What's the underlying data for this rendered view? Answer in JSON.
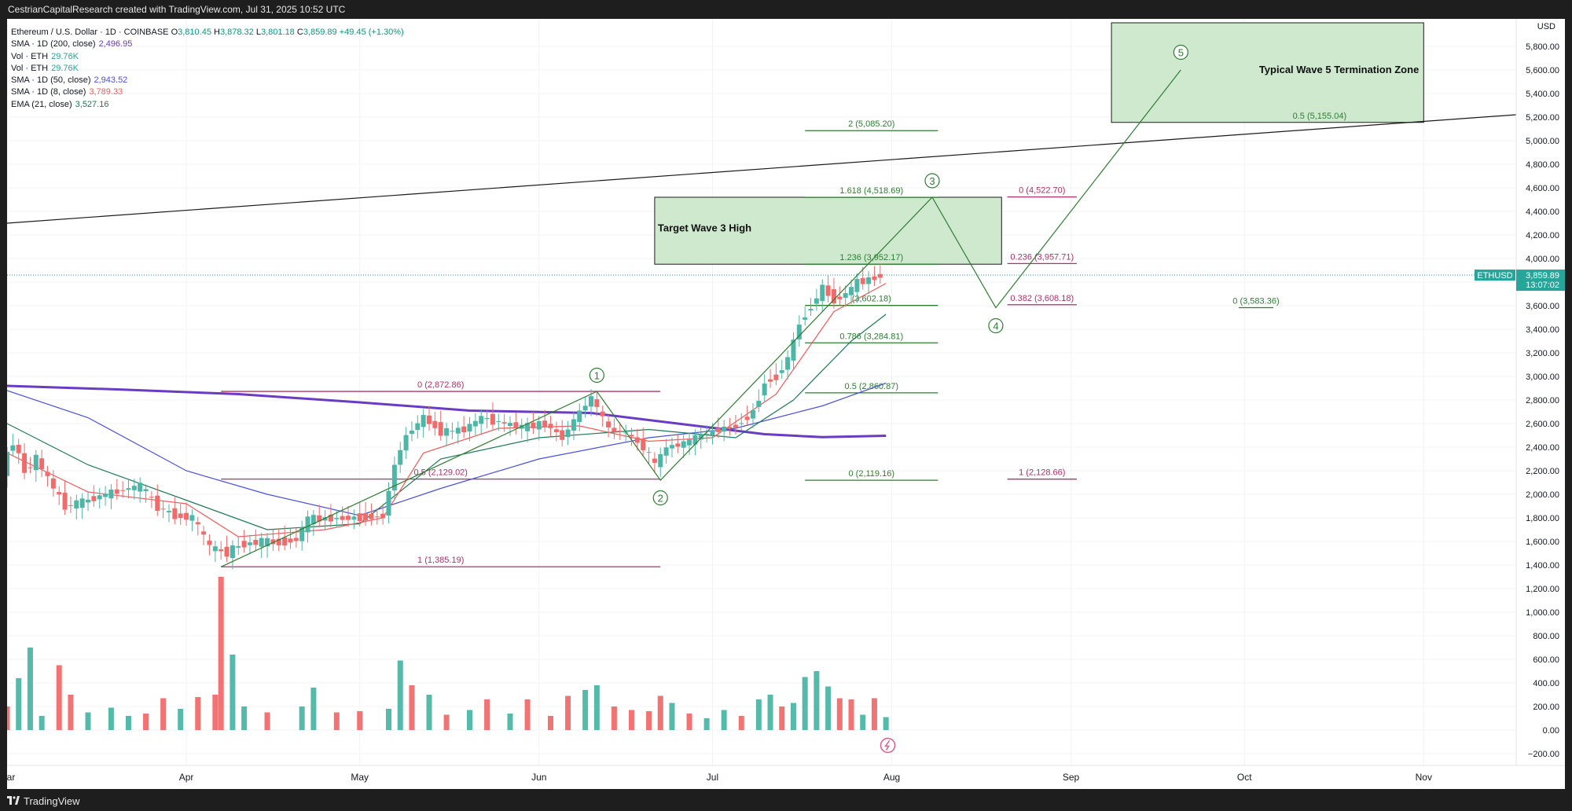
{
  "header": {
    "attribution": "CestrianCapitalResearch created with TradingView.com, Jul 31, 2025 10:52 UTC"
  },
  "footer": {
    "brand": "TradingView"
  },
  "colors": {
    "up": "#4db6a6",
    "down": "#f06b6b",
    "fib_green": "#2e7d32",
    "fib_magenta": "#b0306a",
    "sma200": "#6a3bc4",
    "sma50": "#4a50e0",
    "sma8": "#f25c5c",
    "ema21": "#1d7a55",
    "box_fill": "#cfe9cf"
  },
  "legend": {
    "title": "Ethereum / U.S. Dollar · 1D · COINBASE",
    "o_label": "O",
    "o": "3,810.45",
    "h_label": "H",
    "h": "3,878.32",
    "l_label": "L",
    "l": "3,801.18",
    "c_label": "C",
    "c": "3,859.89",
    "change": "+49.45 (+1.30%)",
    "rows": [
      {
        "label": "SMA · 1D (200, close)",
        "value": "2,496.95",
        "color": "#6a3bc4"
      },
      {
        "label": "Vol · ETH",
        "value": "29.76K",
        "color": "#26a69a"
      },
      {
        "label": "Vol · ETH",
        "value": "29.76K",
        "color": "#26a69a"
      },
      {
        "label": "SMA · 1D (50, close)",
        "value": "2,943.52",
        "color": "#4a50e0"
      },
      {
        "label": "SMA · 1D (8, close)",
        "value": "3,789.33",
        "color": "#f25c5c"
      },
      {
        "label": "EMA (21, close)",
        "value": "3,527.16",
        "color": "#1d7a55"
      }
    ]
  },
  "chart_data": {
    "type": "candlestick",
    "symbol": "ETHUSD",
    "last_price": "3,859.89",
    "countdown": "13:07:02",
    "y_ticks": [
      5800,
      5600,
      5400,
      5200,
      5000,
      4800,
      4600,
      4400,
      4200,
      4000,
      3800,
      3600,
      3400,
      3200,
      3000,
      2800,
      2600,
      2400,
      2200,
      2000,
      1800,
      1600,
      1400,
      1200,
      1000,
      800,
      600,
      400,
      200,
      0,
      -200
    ],
    "x_ticks": [
      {
        "label": "Mar",
        "date": "2025-03-01"
      },
      {
        "label": "Apr",
        "date": "2025-04-01"
      },
      {
        "label": "May",
        "date": "2025-05-01"
      },
      {
        "label": "Jun",
        "date": "2025-06-01"
      },
      {
        "label": "Jul",
        "date": "2025-07-01"
      },
      {
        "label": "Aug",
        "date": "2025-08-01"
      },
      {
        "label": "Sep",
        "date": "2025-09-01"
      },
      {
        "label": "Oct",
        "date": "2025-10-01"
      },
      {
        "label": "Nov",
        "date": "2025-11-01"
      }
    ],
    "x_range": [
      "2025-03-01",
      "2025-11-17"
    ],
    "y_range": [
      -270,
      6000
    ],
    "price_path": [
      [
        "2025-03-01",
        2200
      ],
      [
        "2025-03-03",
        2450
      ],
      [
        "2025-03-05",
        2200
      ],
      [
        "2025-03-07",
        2300
      ],
      [
        "2025-03-10",
        2050
      ],
      [
        "2025-03-12",
        1900
      ],
      [
        "2025-03-15",
        1935
      ],
      [
        "2025-03-19",
        2000
      ],
      [
        "2025-03-22",
        2040
      ],
      [
        "2025-03-25",
        2070
      ],
      [
        "2025-03-28",
        1890
      ],
      [
        "2025-03-31",
        1820
      ],
      [
        "2025-04-03",
        1800
      ],
      [
        "2025-04-06",
        1550
      ],
      [
        "2025-04-09",
        1500
      ],
      [
        "2025-04-11",
        1570
      ],
      [
        "2025-04-15",
        1600
      ],
      [
        "2025-04-18",
        1590
      ],
      [
        "2025-04-21",
        1620
      ],
      [
        "2025-04-23",
        1790
      ],
      [
        "2025-04-27",
        1795
      ],
      [
        "2025-05-01",
        1800
      ],
      [
        "2025-05-04",
        1810
      ],
      [
        "2025-05-06",
        1815
      ],
      [
        "2025-05-08",
        2250
      ],
      [
        "2025-05-10",
        2500
      ],
      [
        "2025-05-13",
        2650
      ],
      [
        "2025-05-16",
        2530
      ],
      [
        "2025-05-20",
        2550
      ],
      [
        "2025-05-23",
        2650
      ],
      [
        "2025-05-27",
        2600
      ],
      [
        "2025-05-30",
        2570
      ],
      [
        "2025-06-03",
        2600
      ],
      [
        "2025-06-06",
        2480
      ],
      [
        "2025-06-09",
        2700
      ],
      [
        "2025-06-11",
        2820
      ],
      [
        "2025-06-14",
        2550
      ],
      [
        "2025-06-17",
        2520
      ],
      [
        "2025-06-20",
        2400
      ],
      [
        "2025-06-22",
        2250
      ],
      [
        "2025-06-24",
        2400
      ],
      [
        "2025-06-27",
        2430
      ],
      [
        "2025-06-30",
        2500
      ],
      [
        "2025-07-03",
        2550
      ],
      [
        "2025-07-06",
        2580
      ],
      [
        "2025-07-09",
        2700
      ],
      [
        "2025-07-11",
        2950
      ],
      [
        "2025-07-13",
        3000
      ],
      [
        "2025-07-15",
        3150
      ],
      [
        "2025-07-17",
        3450
      ],
      [
        "2025-07-19",
        3600
      ],
      [
        "2025-07-21",
        3750
      ],
      [
        "2025-07-23",
        3650
      ],
      [
        "2025-07-25",
        3700
      ],
      [
        "2025-07-27",
        3800
      ],
      [
        "2025-07-29",
        3820
      ],
      [
        "2025-07-31",
        3859.89
      ]
    ],
    "sma200_path": [
      [
        "2025-03-01",
        2920
      ],
      [
        "2025-03-20",
        2890
      ],
      [
        "2025-04-10",
        2850
      ],
      [
        "2025-05-01",
        2780
      ],
      [
        "2025-05-20",
        2710
      ],
      [
        "2025-06-10",
        2690
      ],
      [
        "2025-06-25",
        2600
      ],
      [
        "2025-07-10",
        2510
      ],
      [
        "2025-07-20",
        2485
      ],
      [
        "2025-07-31",
        2496.95
      ]
    ],
    "sma50_path": [
      [
        "2025-03-01",
        2880
      ],
      [
        "2025-03-15",
        2650
      ],
      [
        "2025-04-01",
        2200
      ],
      [
        "2025-04-15",
        2000
      ],
      [
        "2025-05-01",
        1820
      ],
      [
        "2025-05-15",
        2050
      ],
      [
        "2025-06-01",
        2300
      ],
      [
        "2025-06-20",
        2480
      ],
      [
        "2025-07-05",
        2560
      ],
      [
        "2025-07-20",
        2750
      ],
      [
        "2025-07-31",
        2943.52
      ]
    ],
    "ema21_path": [
      [
        "2025-03-01",
        2600
      ],
      [
        "2025-03-15",
        2250
      ],
      [
        "2025-04-01",
        1950
      ],
      [
        "2025-04-15",
        1700
      ],
      [
        "2025-05-01",
        1750
      ],
      [
        "2025-05-15",
        2300
      ],
      [
        "2025-06-01",
        2480
      ],
      [
        "2025-06-20",
        2550
      ],
      [
        "2025-07-05",
        2480
      ],
      [
        "2025-07-15",
        2800
      ],
      [
        "2025-07-25",
        3300
      ],
      [
        "2025-07-31",
        3527.16
      ]
    ],
    "sma8_path": [
      [
        "2025-03-01",
        2350
      ],
      [
        "2025-03-15",
        2020
      ],
      [
        "2025-04-01",
        1920
      ],
      [
        "2025-04-10",
        1640
      ],
      [
        "2025-04-25",
        1700
      ],
      [
        "2025-05-05",
        1800
      ],
      [
        "2025-05-12",
        2350
      ],
      [
        "2025-05-25",
        2560
      ],
      [
        "2025-06-08",
        2580
      ],
      [
        "2025-06-20",
        2450
      ],
      [
        "2025-07-01",
        2480
      ],
      [
        "2025-07-12",
        2850
      ],
      [
        "2025-07-22",
        3550
      ],
      [
        "2025-07-31",
        3789.33
      ]
    ],
    "volume_bars": [
      {
        "date": "2025-03-01",
        "v": 200,
        "up": false
      },
      {
        "date": "2025-03-03",
        "v": 440,
        "up": true
      },
      {
        "date": "2025-03-05",
        "v": 700,
        "up": true
      },
      {
        "date": "2025-03-07",
        "v": 120,
        "up": true
      },
      {
        "date": "2025-03-10",
        "v": 550,
        "up": false
      },
      {
        "date": "2025-03-12",
        "v": 300,
        "up": false
      },
      {
        "date": "2025-03-15",
        "v": 150,
        "up": true
      },
      {
        "date": "2025-03-19",
        "v": 190,
        "up": true
      },
      {
        "date": "2025-03-22",
        "v": 120,
        "up": true
      },
      {
        "date": "2025-03-25",
        "v": 140,
        "up": false
      },
      {
        "date": "2025-03-28",
        "v": 270,
        "up": false
      },
      {
        "date": "2025-03-31",
        "v": 180,
        "up": true
      },
      {
        "date": "2025-04-03",
        "v": 280,
        "up": false
      },
      {
        "date": "2025-04-06",
        "v": 300,
        "up": false
      },
      {
        "date": "2025-04-07",
        "v": 1300,
        "up": false
      },
      {
        "date": "2025-04-09",
        "v": 640,
        "up": true
      },
      {
        "date": "2025-04-11",
        "v": 200,
        "up": true
      },
      {
        "date": "2025-04-15",
        "v": 150,
        "up": false
      },
      {
        "date": "2025-04-21",
        "v": 200,
        "up": true
      },
      {
        "date": "2025-04-23",
        "v": 360,
        "up": true
      },
      {
        "date": "2025-04-27",
        "v": 150,
        "up": false
      },
      {
        "date": "2025-05-01",
        "v": 160,
        "up": false
      },
      {
        "date": "2025-05-06",
        "v": 180,
        "up": true
      },
      {
        "date": "2025-05-08",
        "v": 590,
        "up": true
      },
      {
        "date": "2025-05-10",
        "v": 380,
        "up": false
      },
      {
        "date": "2025-05-13",
        "v": 300,
        "up": true
      },
      {
        "date": "2025-05-16",
        "v": 130,
        "up": false
      },
      {
        "date": "2025-05-20",
        "v": 170,
        "up": true
      },
      {
        "date": "2025-05-23",
        "v": 260,
        "up": false
      },
      {
        "date": "2025-05-27",
        "v": 140,
        "up": true
      },
      {
        "date": "2025-05-30",
        "v": 260,
        "up": false
      },
      {
        "date": "2025-06-03",
        "v": 120,
        "up": false
      },
      {
        "date": "2025-06-06",
        "v": 290,
        "up": false
      },
      {
        "date": "2025-06-09",
        "v": 340,
        "up": true
      },
      {
        "date": "2025-06-11",
        "v": 380,
        "up": true
      },
      {
        "date": "2025-06-14",
        "v": 200,
        "up": false
      },
      {
        "date": "2025-06-17",
        "v": 170,
        "up": false
      },
      {
        "date": "2025-06-20",
        "v": 160,
        "up": false
      },
      {
        "date": "2025-06-22",
        "v": 290,
        "up": false
      },
      {
        "date": "2025-06-24",
        "v": 230,
        "up": true
      },
      {
        "date": "2025-06-27",
        "v": 140,
        "up": false
      },
      {
        "date": "2025-06-30",
        "v": 100,
        "up": true
      },
      {
        "date": "2025-07-03",
        "v": 170,
        "up": true
      },
      {
        "date": "2025-07-06",
        "v": 120,
        "up": false
      },
      {
        "date": "2025-07-09",
        "v": 260,
        "up": true
      },
      {
        "date": "2025-07-11",
        "v": 300,
        "up": true
      },
      {
        "date": "2025-07-13",
        "v": 200,
        "up": false
      },
      {
        "date": "2025-07-15",
        "v": 230,
        "up": true
      },
      {
        "date": "2025-07-17",
        "v": 450,
        "up": true
      },
      {
        "date": "2025-07-19",
        "v": 500,
        "up": true
      },
      {
        "date": "2025-07-21",
        "v": 370,
        "up": true
      },
      {
        "date": "2025-07-23",
        "v": 270,
        "up": false
      },
      {
        "date": "2025-07-25",
        "v": 260,
        "up": false
      },
      {
        "date": "2025-07-27",
        "v": 130,
        "up": true
      },
      {
        "date": "2025-07-29",
        "v": 270,
        "up": false
      },
      {
        "date": "2025-07-31",
        "v": 110,
        "up": true
      }
    ],
    "fib_levels": [
      {
        "label": "0 (2,872.86)",
        "price": 2872.86,
        "from": "2025-04-07",
        "to": "2025-06-22",
        "color": "#b0306a"
      },
      {
        "label": "0.5 (2,129.02)",
        "price": 2129.02,
        "from": "2025-04-07",
        "to": "2025-06-22",
        "color": "#b0306a"
      },
      {
        "label": "1 (1,385.19)",
        "price": 1385.19,
        "from": "2025-04-07",
        "to": "2025-06-22",
        "color": "#b0306a"
      },
      {
        "label": "2 (5,085.20)",
        "price": 5085.2,
        "from": "2025-07-17",
        "to": "2025-08-09",
        "color": "#2e7d32"
      },
      {
        "label": "1.618 (4,518.69)",
        "price": 4518.69,
        "from": "2025-07-17",
        "to": "2025-08-09",
        "color": "#2e7d32"
      },
      {
        "label": "1.236 (3,952.17)",
        "price": 3952.17,
        "from": "2025-07-17",
        "to": "2025-08-09",
        "color": "#2e7d32"
      },
      {
        "label": "(3,602.18)",
        "price": 3602.18,
        "from": "2025-07-17",
        "to": "2025-08-09",
        "color": "#2e7d32"
      },
      {
        "label": "0.786 (3,284.81)",
        "price": 3284.81,
        "from": "2025-07-17",
        "to": "2025-08-09",
        "color": "#2e7d32"
      },
      {
        "label": "0.5 (2,860.87)",
        "price": 2860.87,
        "from": "2025-07-17",
        "to": "2025-08-09",
        "color": "#2e7d32"
      },
      {
        "label": "0 (2,119.16)",
        "price": 2119.16,
        "from": "2025-07-17",
        "to": "2025-08-09",
        "color": "#2e7d32"
      },
      {
        "label": "0 (4,522.70)",
        "price": 4522.7,
        "from": "2025-08-21",
        "to": "2025-09-02",
        "color": "#b0306a"
      },
      {
        "label": "0.236 (3,957.71)",
        "price": 3957.71,
        "from": "2025-08-21",
        "to": "2025-09-02",
        "color": "#b0306a"
      },
      {
        "label": "0.382 (3,608.18)",
        "price": 3608.18,
        "from": "2025-08-21",
        "to": "2025-09-02",
        "color": "#b0306a"
      },
      {
        "label": "1 (2,128.66)",
        "price": 2128.66,
        "from": "2025-08-21",
        "to": "2025-09-02",
        "color": "#b0306a"
      },
      {
        "label": "0 (3,583.36)",
        "price": 3583.36,
        "from": "2025-09-30",
        "to": "2025-10-06",
        "color": "#2e7d32"
      }
    ],
    "boxes": [
      {
        "label": "Target Wave 3 High",
        "from": "2025-06-21",
        "to": "2025-08-20",
        "top": 4520,
        "bottom": 3952
      },
      {
        "label": "Typical Wave 5 Termination Zone",
        "sub_label": "0.5 (5,155.04)",
        "from": "2025-09-08",
        "to": "2025-11-01",
        "top": 6000,
        "bottom": 5155
      }
    ],
    "trendline": {
      "from": [
        "2025-03-01",
        4300
      ],
      "to": [
        "2025-11-17",
        5220
      ]
    },
    "wave_path": [
      [
        "2025-04-07",
        1385
      ],
      [
        "2025-06-11",
        2873
      ],
      [
        "2025-06-22",
        2119
      ],
      [
        "2025-08-08",
        4520
      ],
      [
        "2025-08-19",
        3583
      ],
      [
        "2025-09-20",
        5600
      ]
    ],
    "wave_labels": [
      {
        "label": "1",
        "date": "2025-06-11",
        "price": 3010
      },
      {
        "label": "2",
        "date": "2025-06-22",
        "price": 1970
      },
      {
        "label": "3",
        "date": "2025-08-08",
        "price": 4660
      },
      {
        "label": "4",
        "date": "2025-08-19",
        "price": 3430
      },
      {
        "label": "5",
        "date": "2025-09-20",
        "price": 5750
      }
    ]
  }
}
